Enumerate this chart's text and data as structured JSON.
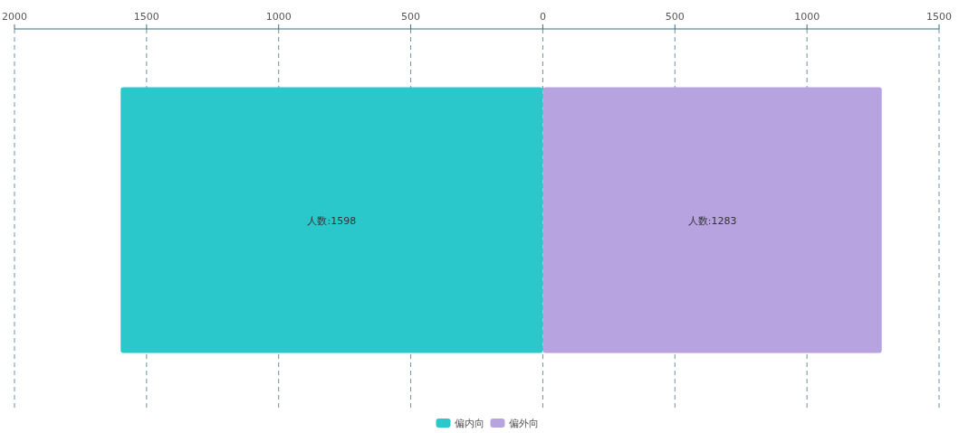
{
  "chart_data": {
    "type": "bar",
    "orientation": "horizontal",
    "categories": [
      null
    ],
    "series": [
      {
        "name": "偏内向",
        "color": "#2bc8cb",
        "values": [
          1598
        ],
        "base": [
          -1598
        ],
        "value_labels": [
          "人数:1598"
        ]
      },
      {
        "name": "偏外向",
        "color": "#b7a3e0",
        "values": [
          1283
        ],
        "value_labels": [
          "人数:1283"
        ]
      }
    ],
    "xlim": [
      -2000,
      1500
    ],
    "xticks": [
      {
        "value": -2000,
        "label": "2000"
      },
      {
        "value": -1500,
        "label": "1500"
      },
      {
        "value": -1000,
        "label": "1000"
      },
      {
        "value": -500,
        "label": "500"
      },
      0,
      500,
      1000,
      1500
    ],
    "grid": "x",
    "legend": "bottom"
  }
}
